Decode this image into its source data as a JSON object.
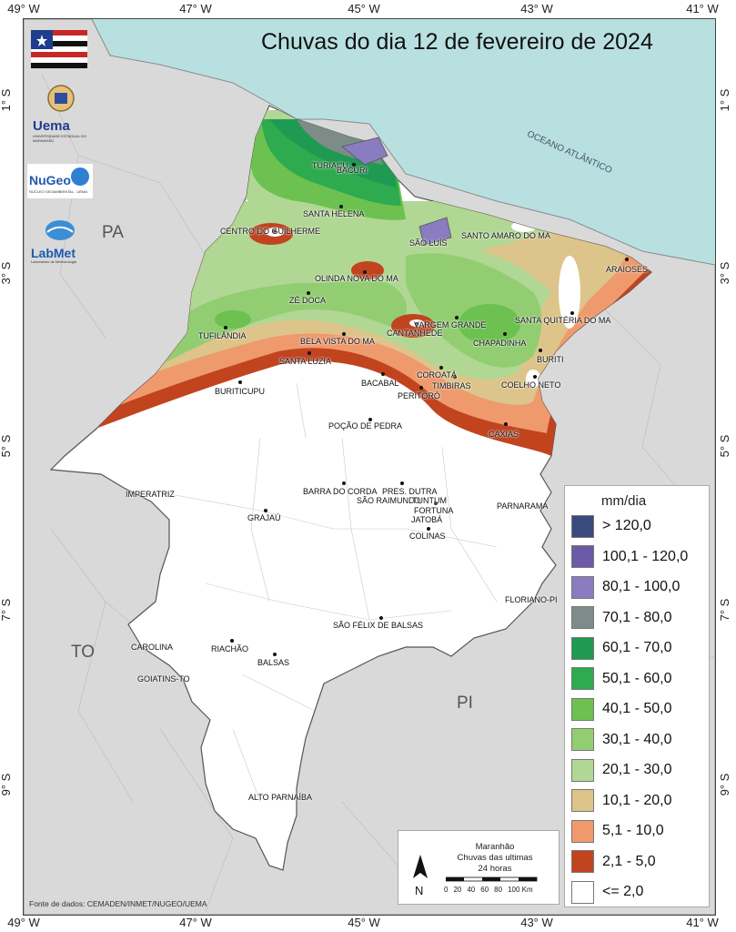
{
  "title": "Chuvas do dia 12 de fevereiro de 2024",
  "axes": {
    "longitude_ticks": [
      "49° W",
      "47° W",
      "45° W",
      "43° W",
      "41° W"
    ],
    "latitude_ticks": [
      "1° S",
      "3° S",
      "5° S",
      "7° S",
      "9° S"
    ]
  },
  "regions": {
    "PA": "PA",
    "TO": "TO",
    "PI": "PI",
    "ocean": "OCEANO ATLÂNTICO"
  },
  "cities": {
    "turiacu": "TURIAÇU",
    "bacuri": "BACURI",
    "santa_helena": "SANTA HELENA",
    "centro_guilherme": "CENTRO DO GUILHERME",
    "sao_luis": "SÃO LUÍS",
    "santo_amaro": "SANTO AMARO DO MA",
    "araioses": "ARAIOSES",
    "olinda_nova": "OLINDA NOVA DO MA",
    "ze_doca": "ZÉ DOCA",
    "vargem_grande": "VARGEM GRANDE",
    "santa_quiteria": "SANTA QUITÉRIA DO MA",
    "tufilandia": "TUFILÂNDIA",
    "bela_vista": "BELA VISTA DO MA",
    "cantanhede": "CANTANHEDE",
    "chapadinha": "CHAPADINHA",
    "buriti": "BURITI",
    "santa_luzia": "SANTA LUZIA",
    "coroata": "COROATÁ",
    "bacabal": "BACABAL",
    "timbiras": "TIMBIRAS",
    "coelho_neto": "COELHO NETO",
    "buriticupu": "BURITICUPU",
    "peritoro": "PERITORÓ",
    "pocao_pedra": "POÇÃO DE PEDRA",
    "caxias": "CAXIAS",
    "imperatriz": "IMPERATRIZ",
    "barra_corda": "BARRA DO CORDA",
    "sao_raimundo": "SÃO RAIMUNDO",
    "pres_dutra": "PRES. DUTRA",
    "tuntum": "TUNTUM",
    "fortuna": "FORTUNA",
    "jatoba": "JATOBÁ",
    "colinas": "COLINAS",
    "parnarama": "PARNARAMA",
    "grajau": "GRAJAÚ",
    "floriano": "FLORIANO-PI",
    "sao_felix": "SÃO FÉLIX DE BALSAS",
    "carolina": "CAROLINA",
    "riachao": "RIACHÃO",
    "balsas": "BALSAS",
    "goiatins": "GOIATINS-TO",
    "alto_parnaiba": "ALTO PARNAÍBA"
  },
  "legend": {
    "title": "mm/dia",
    "items": [
      {
        "label": "> 120,0",
        "color": "#3b4a7c"
      },
      {
        "label": "100,1 - 120,0",
        "color": "#6a5aa8"
      },
      {
        "label": "80,1 - 100,0",
        "color": "#8a7cc0"
      },
      {
        "label": "70,1 - 80,0",
        "color": "#7d8c88"
      },
      {
        "label": "60,1 - 70,0",
        "color": "#1f9a52"
      },
      {
        "label": "50,1 - 60,0",
        "color": "#2eaa4f"
      },
      {
        "label": "40,1 - 50,0",
        "color": "#6cc150"
      },
      {
        "label": "30,1 - 40,0",
        "color": "#92cd72"
      },
      {
        "label": "20,1 - 30,0",
        "color": "#b0d793"
      },
      {
        "label": "10,1 - 20,0",
        "color": "#ddc48a"
      },
      {
        "label": "5,1 - 10,0",
        "color": "#ef9a6c"
      },
      {
        "label": "2,1 - 5,0",
        "color": "#c1441f"
      },
      {
        "label": "<= 2,0",
        "color": "#ffffff"
      }
    ]
  },
  "scalebar": {
    "line1": "Maranhão",
    "line2": "Chuvas das ultimas",
    "line3": "24 horas",
    "north": "N",
    "ticks": [
      "0",
      "20",
      "40",
      "60",
      "80",
      "100 Km"
    ]
  },
  "logos": {
    "uema": "Uema",
    "uema_sub": "UNIVERSIDADE ESTADUAL DO MARANHÃO",
    "nugeo": "NuGeo",
    "nugeo_sub": "NÚCLEO GEOAMBIENTAL - UEMA",
    "labmet": "LabMet",
    "labmet_sub": "Laboratório de Meteorologia"
  },
  "source": "Fonte de dados: CEMADEN/INMET/NUGEO/UEMA"
}
